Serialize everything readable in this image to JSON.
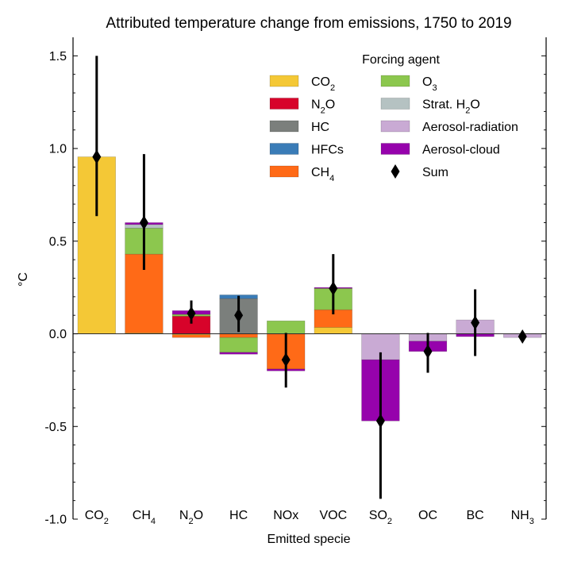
{
  "chart_data": {
    "type": "bar",
    "stacked": true,
    "title": "Attributed temperature change from emissions, 1750 to 2019",
    "xlabel": "Emitted specie",
    "ylabel": "°C",
    "ylim": [
      -1.0,
      1.6
    ],
    "yticks": [
      -1.0,
      -0.5,
      0.0,
      0.5,
      1.0,
      1.5
    ],
    "ytick_labels": [
      "-1.0",
      "-0.5",
      "0.0",
      "0.5",
      "1.0",
      "1.5"
    ],
    "categories": [
      {
        "base": "CO",
        "sub": "2"
      },
      {
        "base": "CH",
        "sub": "4"
      },
      {
        "base": "N",
        "sub": "2",
        "tail": "O"
      },
      {
        "base": "HC"
      },
      {
        "base": "NOx"
      },
      {
        "base": "VOC"
      },
      {
        "base": "SO",
        "sub": "2"
      },
      {
        "base": "OC"
      },
      {
        "base": "BC"
      },
      {
        "base": "NH",
        "sub": "3"
      }
    ],
    "legend": {
      "title": "Forcing agent",
      "placement": "top-right",
      "columns": 2,
      "entries": [
        {
          "key": "co2",
          "base": "CO",
          "sub": "2"
        },
        {
          "key": "n2o",
          "base": "N",
          "sub": "2",
          "tail": "O"
        },
        {
          "key": "hc",
          "base": "HC"
        },
        {
          "key": "hfcs",
          "base": "HFCs"
        },
        {
          "key": "ch4",
          "base": "CH",
          "sub": "4"
        },
        {
          "key": "o3",
          "base": "O",
          "sub": "3"
        },
        {
          "key": "strat_h2o",
          "base": "Strat. H",
          "sub": "2",
          "tail": "O"
        },
        {
          "key": "aer_rad",
          "base": "Aerosol-radiation"
        },
        {
          "key": "aer_cld",
          "base": "Aerosol-cloud"
        },
        {
          "key": "sum",
          "base": "Sum"
        }
      ]
    },
    "colors": {
      "co2": "#f4c836",
      "n2o": "#d7032a",
      "hc": "#7b7f7c",
      "hfcs": "#3a7cb7",
      "ch4": "#ff6a17",
      "o3": "#8cc74e",
      "strat_h2o": "#b5c2c2",
      "aer_rad": "#c9aad4",
      "aer_cld": "#9602ac",
      "sum": "#000000"
    },
    "series": [
      {
        "key": "co2",
        "values": [
          0.955,
          0.005,
          -0.005,
          0.0,
          0.0,
          0.035,
          0.0,
          0.0,
          0.0,
          0.0
        ]
      },
      {
        "key": "ch4",
        "values": [
          0.0,
          0.425,
          -0.015,
          -0.02,
          -0.19,
          0.095,
          0.0,
          0.0,
          0.0,
          0.0
        ]
      },
      {
        "key": "n2o",
        "values": [
          0.0,
          0.0,
          0.095,
          0.0,
          0.0,
          0.0,
          0.0,
          0.0,
          0.0,
          0.0
        ]
      },
      {
        "key": "hc",
        "values": [
          0.0,
          0.0,
          0.0,
          0.19,
          0.0,
          0.0,
          0.0,
          0.0,
          0.0,
          0.0
        ]
      },
      {
        "key": "hfcs",
        "values": [
          0.0,
          0.0,
          0.0,
          0.02,
          0.0,
          0.0,
          0.0,
          0.0,
          0.0,
          0.0
        ]
      },
      {
        "key": "o3",
        "values": [
          0.0,
          0.14,
          0.01,
          -0.08,
          0.07,
          0.115,
          0.0,
          0.0,
          0.0,
          0.0
        ]
      },
      {
        "key": "strat_h2o",
        "values": [
          0.0,
          0.02,
          0.0,
          0.0,
          0.0,
          0.0,
          0.0,
          0.0,
          0.0,
          0.0
        ]
      },
      {
        "key": "aer_rad",
        "values": [
          0.0,
          0.0,
          0.0,
          0.0,
          0.0,
          0.0,
          -0.14,
          -0.04,
          0.075,
          -0.02
        ]
      },
      {
        "key": "aer_cld",
        "values": [
          0.0,
          0.01,
          0.02,
          -0.01,
          -0.01,
          0.005,
          -0.33,
          -0.055,
          -0.015,
          0.0
        ]
      }
    ],
    "sum": {
      "values": [
        0.955,
        0.6,
        0.11,
        0.1,
        -0.14,
        0.245,
        -0.47,
        -0.095,
        0.06,
        -0.015
      ],
      "err_low": [
        0.635,
        0.345,
        0.055,
        0.01,
        -0.29,
        0.105,
        -0.89,
        -0.21,
        -0.12,
        -0.03
      ],
      "err_high": [
        1.5,
        0.97,
        0.18,
        0.205,
        0.005,
        0.43,
        -0.1,
        0.005,
        0.24,
        0.0
      ]
    }
  }
}
